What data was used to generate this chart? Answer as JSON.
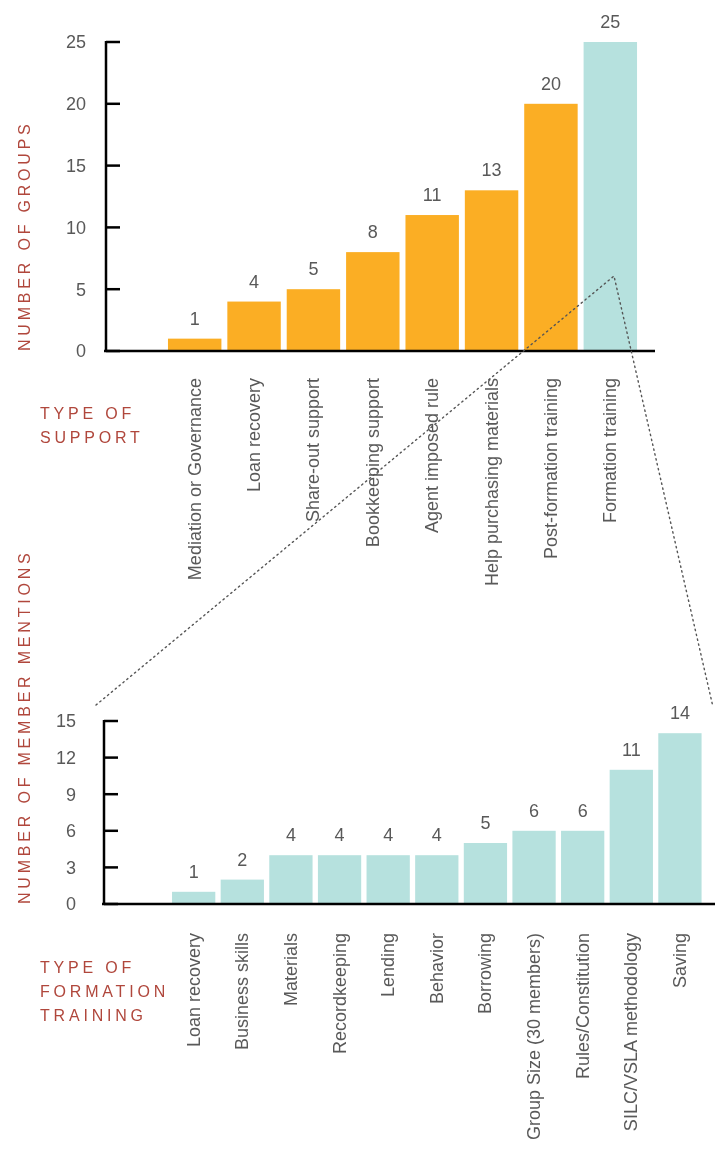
{
  "chart_data": [
    {
      "type": "bar",
      "ylabel": "NUMBER OF GROUPS",
      "xlabel": "TYPE OF\nSUPPORT",
      "categories": [
        "Mediation or Governance",
        "Loan recovery",
        "Share-out support",
        "Bookkeeping support",
        "Agent imposed rule",
        "Help purchasing materials",
        "Post-formation training",
        "Formation training"
      ],
      "values": [
        1,
        4,
        5,
        8,
        11,
        13,
        20,
        25
      ],
      "colors": [
        "#fbae24",
        "#fbae24",
        "#fbae24",
        "#fbae24",
        "#fbae24",
        "#fbae24",
        "#fbae24",
        "#b6e1de"
      ],
      "ylim": [
        0,
        25
      ],
      "yticks": [
        0,
        5,
        10,
        15,
        20,
        25
      ],
      "data_labels": true
    },
    {
      "type": "bar",
      "ylabel": "NUMBER OF MEMBER MENTIONS",
      "xlabel": "TYPE OF\nFORMATION\nTRAINING",
      "categories": [
        "Loan recovery",
        "Business skills",
        "Materials",
        "Recordkeeping",
        "Lending",
        "Behavior",
        "Borrowing",
        "Group Size (30 members)",
        "Rules/Constitution",
        "SILC/VSLA methodology",
        "Saving"
      ],
      "values": [
        1,
        2,
        4,
        4,
        4,
        4,
        5,
        6,
        6,
        11,
        14
      ],
      "color": "#b6e1de",
      "ylim": [
        0,
        15
      ],
      "yticks": [
        0,
        3,
        6,
        9,
        12,
        15
      ],
      "data_labels": true
    }
  ]
}
